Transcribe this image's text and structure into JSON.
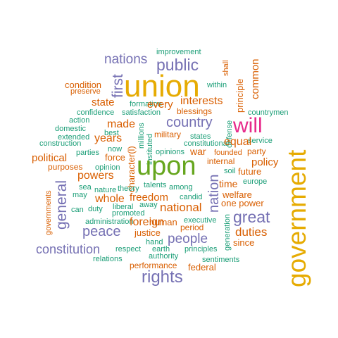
{
  "word_cloud": {
    "colors": {
      "teal": "#1b9e77",
      "orange": "#d95f02",
      "purple": "#7570b3",
      "pink": "#e7298a",
      "green": "#66a61e",
      "gold": "#e6ab02"
    },
    "words": [
      "improvement",
      "nations",
      "public",
      "shall",
      "common",
      "union",
      "condition",
      "within",
      "preserve",
      "principle",
      "first",
      "formation",
      "state",
      "every",
      "interests",
      "countrymen",
      "confidence",
      "satisfaction",
      "blessings",
      "action",
      "country",
      "will",
      "domestic",
      "made",
      "military",
      "extended",
      "best",
      "millions",
      "states",
      "defense",
      "construction",
      "character(l)",
      "instituted",
      "constitutional",
      "service",
      "years",
      "equal",
      "government",
      "party",
      "political",
      "now",
      "opinions",
      "war",
      "founded",
      "parties",
      "force",
      "internal",
      "policy",
      "purposes",
      "upon",
      "opinion",
      "soil",
      "future",
      "powers",
      "europe",
      "sea",
      "talents",
      "among",
      "time",
      "may",
      "nature",
      "theory",
      "welfare",
      "general",
      "whole",
      "freedom",
      "candid",
      "one power",
      "liberal",
      "away",
      "nation",
      "can",
      "duty",
      "promoted",
      "great",
      "national",
      "governments",
      "administration",
      "human",
      "executive",
      "foreign",
      "period",
      "peace",
      "justice",
      "duties",
      "people",
      "hand",
      "generation",
      "earth",
      "since",
      "constitution",
      "respect",
      "principles",
      "authority",
      "relations",
      "sentiments",
      "performance",
      "federal",
      "rights"
    ]
  }
}
